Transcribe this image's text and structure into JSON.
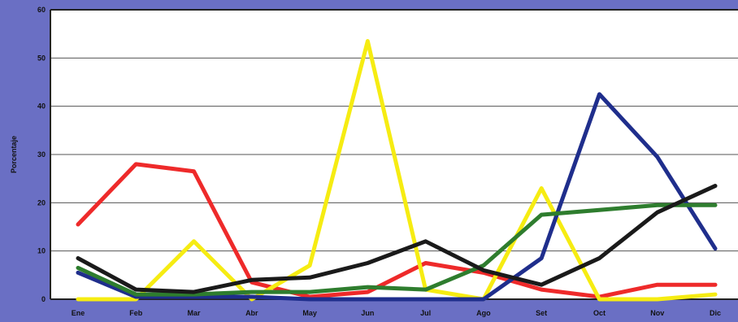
{
  "chart_data": {
    "type": "line",
    "title": "",
    "xlabel": "",
    "ylabel": "Porcentaje",
    "ylim": [
      0,
      60
    ],
    "yticks": [
      0,
      10,
      20,
      30,
      40,
      50,
      60
    ],
    "grid": true,
    "categories": [
      "Ene",
      "Feb",
      "Mar",
      "Abr",
      "May",
      "Jun",
      "Jul",
      "Ago",
      "Set",
      "Oct",
      "Nov",
      "Dic"
    ],
    "series": [
      {
        "color": "#ee2a2a",
        "values": [
          15.5,
          28,
          26.5,
          3.5,
          0.5,
          1.5,
          7.5,
          5.5,
          2,
          0.5,
          3,
          3
        ]
      },
      {
        "color": "#f6ec12",
        "values": [
          0,
          0,
          12,
          0,
          7,
          53.5,
          2,
          0,
          23,
          0,
          0,
          1
        ]
      },
      {
        "color": "#1f2e8c",
        "values": [
          5.5,
          0.5,
          0.5,
          0.5,
          0,
          0,
          0,
          0,
          8.5,
          42.5,
          29.5,
          10.5
        ]
      },
      {
        "color": "#2e7d2e",
        "values": [
          6.5,
          1,
          1,
          1.5,
          1.5,
          2.5,
          2,
          7,
          17.5,
          18.5,
          19.5,
          19.5
        ]
      },
      {
        "color": "#1a1a1a",
        "values": [
          8.5,
          2,
          1.5,
          4,
          4.5,
          7.5,
          12,
          6,
          3,
          8.5,
          18,
          23.5
        ]
      }
    ]
  }
}
